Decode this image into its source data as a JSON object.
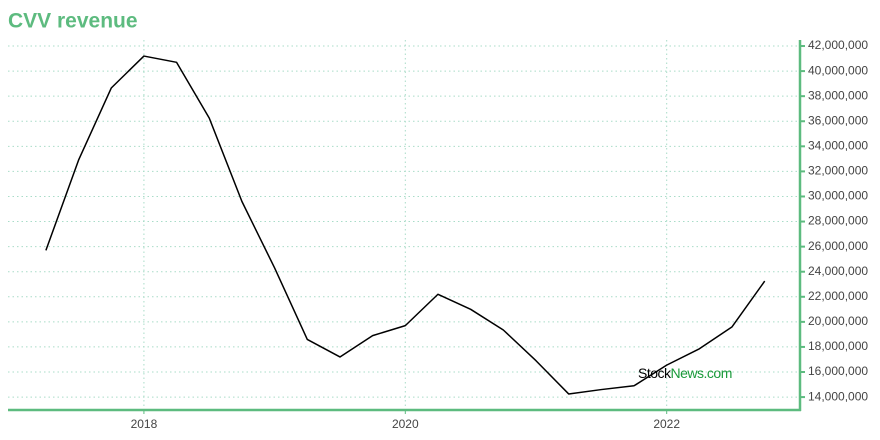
{
  "chart_data": {
    "type": "line",
    "title": "CVV revenue",
    "watermark": {
      "brand": "Stock",
      "domain": "News.com"
    },
    "x": [
      2017.25,
      2017.5,
      2017.75,
      2018,
      2018.25,
      2018.5,
      2018.75,
      2019,
      2019.25,
      2019.5,
      2019.75,
      2020,
      2020.25,
      2020.5,
      2020.75,
      2021,
      2021.25,
      2021.5,
      2021.75,
      2022,
      2022.25,
      2022.5,
      2022.75
    ],
    "values": [
      25700000,
      32900000,
      38650000,
      41200000,
      40700000,
      36250000,
      29600000,
      24300000,
      18600000,
      17200000,
      18900000,
      19700000,
      22200000,
      21000000,
      19350000,
      16900000,
      14250000,
      14600000,
      14900000,
      16550000,
      17850000,
      19600000,
      23250000
    ],
    "color": "#000000",
    "xlim": [
      2016.96,
      2023.02
    ],
    "xticks": [
      2018,
      2020,
      2022
    ],
    "ylim": [
      12970000,
      42480000
    ],
    "yticks": [
      {
        "value": 14000000,
        "label": "14,000,000"
      },
      {
        "value": 16000000,
        "label": "16,000,000"
      },
      {
        "value": 18000000,
        "label": "18,000,000"
      },
      {
        "value": 20000000,
        "label": "20,000,000"
      },
      {
        "value": 22000000,
        "label": "22,000,000"
      },
      {
        "value": 24000000,
        "label": "24,000,000"
      },
      {
        "value": 26000000,
        "label": "26,000,000"
      },
      {
        "value": 28000000,
        "label": "28,000,000"
      },
      {
        "value": 30000000,
        "label": "30,000,000"
      },
      {
        "value": 32000000,
        "label": "32,000,000"
      },
      {
        "value": 34000000,
        "label": "34,000,000"
      },
      {
        "value": 36000000,
        "label": "36,000,000"
      },
      {
        "value": 38000000,
        "label": "38,000,000"
      },
      {
        "value": 40000000,
        "label": "40,000,000"
      },
      {
        "value": 42000000,
        "label": "42,000,000"
      }
    ],
    "grid": true,
    "axis_color": "#5dbb7f"
  }
}
